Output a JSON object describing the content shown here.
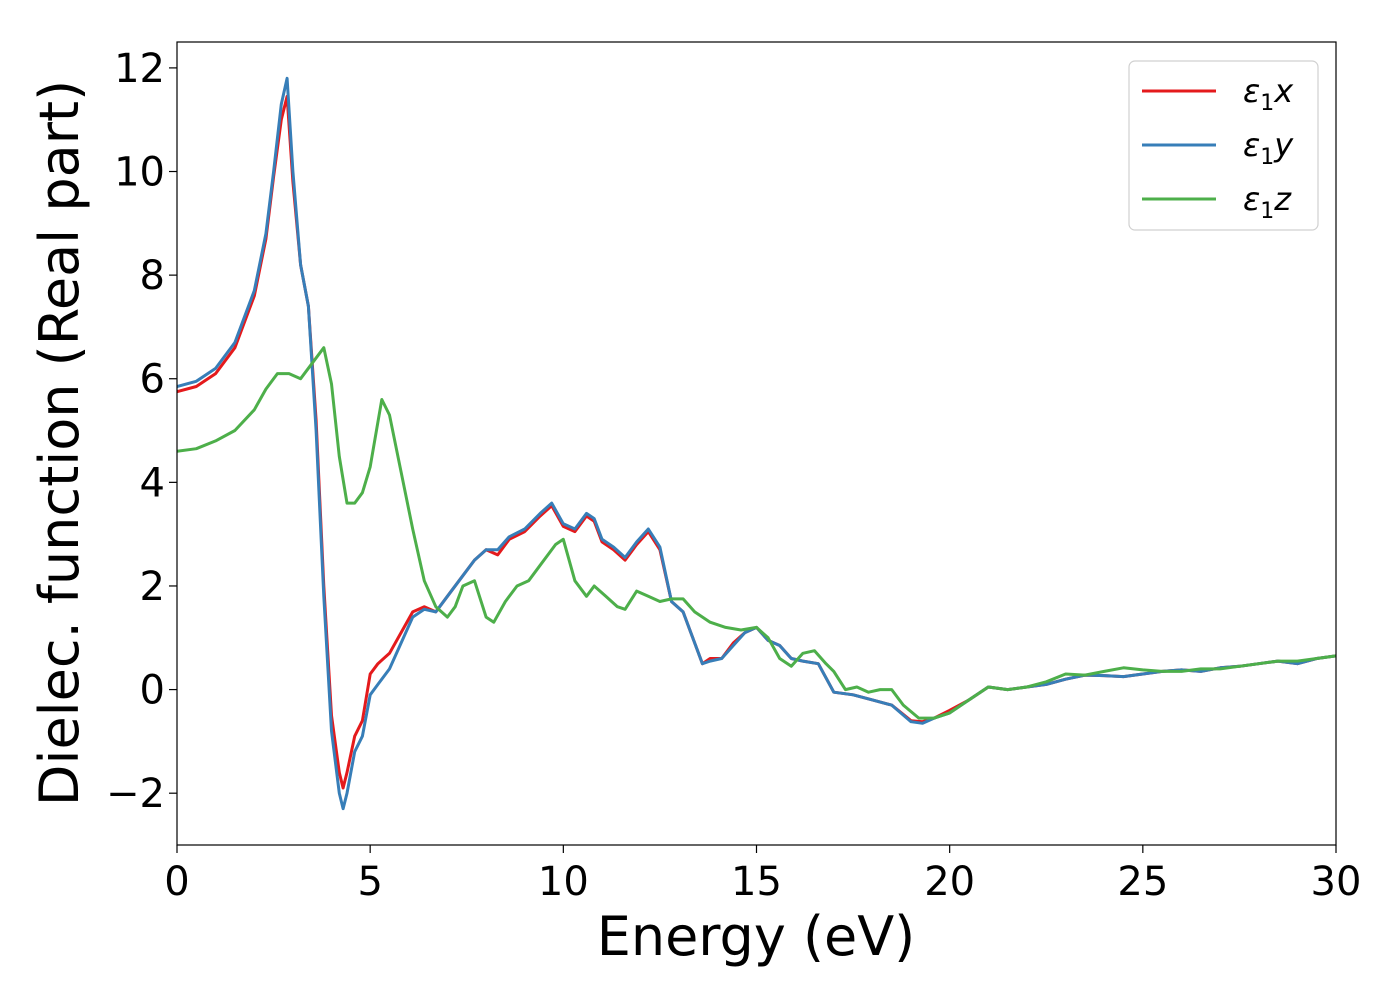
{
  "chart_data": {
    "type": "line",
    "xlabel": "Energy (eV)",
    "ylabel": "Dielec. function (Real part)",
    "xlim": [
      0,
      30
    ],
    "ylim": [
      -3,
      12.5
    ],
    "xticks": [
      0,
      5,
      10,
      15,
      20,
      25,
      30
    ],
    "yticks": [
      -2,
      0,
      2,
      4,
      6,
      8,
      10,
      12
    ],
    "xtick_labels": [
      "0",
      "5",
      "10",
      "15",
      "20",
      "25",
      "30"
    ],
    "ytick_labels": [
      "−2",
      "0",
      "2",
      "4",
      "6",
      "8",
      "10",
      "12"
    ],
    "grid": false,
    "legend_position": "top-right",
    "series": [
      {
        "name": "ε1x",
        "legend": {
          "base": "ε",
          "sub": "1",
          "var": "x"
        },
        "color": "#e41a1c",
        "x": [
          0,
          0.5,
          1,
          1.5,
          2,
          2.3,
          2.5,
          2.7,
          2.85,
          3.0,
          3.2,
          3.4,
          3.6,
          3.8,
          4.0,
          4.2,
          4.3,
          4.4,
          4.6,
          4.8,
          5.0,
          5.2,
          5.5,
          5.8,
          6.1,
          6.4,
          6.7,
          7.0,
          7.3,
          7.7,
          8.0,
          8.3,
          8.6,
          9.0,
          9.4,
          9.7,
          10.0,
          10.3,
          10.6,
          10.8,
          11.0,
          11.3,
          11.6,
          11.9,
          12.2,
          12.5,
          12.8,
          13.1,
          13.4,
          13.6,
          13.8,
          14.1,
          14.4,
          14.7,
          15.0,
          15.3,
          15.6,
          15.9,
          16.2,
          16.6,
          17.0,
          17.5,
          18.0,
          18.5,
          19.0,
          19.3,
          19.6,
          20.0,
          20.5,
          21.0,
          21.5,
          22.0,
          22.5,
          23.0,
          23.5,
          24.0,
          24.5,
          25.0,
          25.5,
          26.0,
          26.5,
          27.0,
          27.5,
          28.0,
          28.5,
          29.0,
          29.5,
          30.0
        ],
        "y": [
          5.75,
          5.85,
          6.1,
          6.6,
          7.6,
          8.7,
          9.9,
          11.0,
          11.45,
          9.8,
          8.2,
          7.4,
          5.2,
          2.0,
          -0.5,
          -1.6,
          -1.9,
          -1.6,
          -0.9,
          -0.6,
          0.3,
          0.5,
          0.7,
          1.1,
          1.5,
          1.6,
          1.5,
          1.8,
          2.1,
          2.5,
          2.7,
          2.6,
          2.9,
          3.05,
          3.35,
          3.55,
          3.15,
          3.05,
          3.35,
          3.25,
          2.85,
          2.7,
          2.5,
          2.8,
          3.05,
          2.7,
          1.7,
          1.5,
          0.9,
          0.5,
          0.6,
          0.6,
          0.9,
          1.1,
          1.2,
          0.95,
          0.85,
          0.6,
          0.55,
          0.5,
          -0.05,
          -0.1,
          -0.2,
          -0.3,
          -0.6,
          -0.62,
          -0.55,
          -0.4,
          -0.2,
          0.05,
          0.0,
          0.05,
          0.1,
          0.2,
          0.28,
          0.27,
          0.25,
          0.3,
          0.35,
          0.38,
          0.35,
          0.42,
          0.45,
          0.5,
          0.55,
          0.5,
          0.6,
          0.65
        ]
      },
      {
        "name": "ε1y",
        "legend": {
          "base": "ε",
          "sub": "1",
          "var": "y"
        },
        "color": "#377eb8",
        "x": [
          0,
          0.5,
          1,
          1.5,
          2,
          2.3,
          2.5,
          2.7,
          2.85,
          3.0,
          3.2,
          3.4,
          3.6,
          3.8,
          4.0,
          4.2,
          4.3,
          4.4,
          4.6,
          4.8,
          5.0,
          5.2,
          5.5,
          5.8,
          6.1,
          6.4,
          6.7,
          7.0,
          7.3,
          7.7,
          8.0,
          8.3,
          8.6,
          9.0,
          9.4,
          9.7,
          10.0,
          10.3,
          10.6,
          10.8,
          11.0,
          11.3,
          11.6,
          11.9,
          12.2,
          12.5,
          12.8,
          13.1,
          13.4,
          13.6,
          13.8,
          14.1,
          14.4,
          14.7,
          15.0,
          15.3,
          15.6,
          15.9,
          16.2,
          16.6,
          17.0,
          17.5,
          18.0,
          18.5,
          19.0,
          19.3,
          19.6,
          20.0,
          20.5,
          21.0,
          21.5,
          22.0,
          22.5,
          23.0,
          23.5,
          24.0,
          24.5,
          25.0,
          25.5,
          26.0,
          26.5,
          27.0,
          27.5,
          28.0,
          28.5,
          29.0,
          29.5,
          30.0
        ],
        "y": [
          5.85,
          5.95,
          6.2,
          6.7,
          7.7,
          8.8,
          10.0,
          11.3,
          11.8,
          10.0,
          8.2,
          7.4,
          5.0,
          1.8,
          -0.8,
          -2.0,
          -2.3,
          -2.0,
          -1.2,
          -0.9,
          -0.1,
          0.1,
          0.4,
          0.9,
          1.4,
          1.55,
          1.5,
          1.8,
          2.1,
          2.5,
          2.7,
          2.7,
          2.95,
          3.1,
          3.4,
          3.6,
          3.2,
          3.1,
          3.4,
          3.3,
          2.9,
          2.75,
          2.55,
          2.85,
          3.1,
          2.75,
          1.7,
          1.5,
          0.9,
          0.5,
          0.55,
          0.6,
          0.85,
          1.1,
          1.2,
          0.95,
          0.85,
          0.6,
          0.55,
          0.5,
          -0.05,
          -0.1,
          -0.2,
          -0.3,
          -0.62,
          -0.65,
          -0.55,
          -0.45,
          -0.2,
          0.05,
          0.0,
          0.05,
          0.1,
          0.2,
          0.28,
          0.27,
          0.25,
          0.3,
          0.35,
          0.38,
          0.35,
          0.42,
          0.45,
          0.5,
          0.55,
          0.5,
          0.6,
          0.65
        ]
      },
      {
        "name": "ε1z",
        "legend": {
          "base": "ε",
          "sub": "1",
          "var": "z"
        },
        "color": "#4daf4a",
        "x": [
          0,
          0.5,
          1,
          1.5,
          2,
          2.3,
          2.6,
          2.9,
          3.2,
          3.5,
          3.8,
          4.0,
          4.2,
          4.4,
          4.6,
          4.8,
          5.0,
          5.3,
          5.5,
          5.8,
          6.1,
          6.4,
          6.7,
          7.0,
          7.2,
          7.4,
          7.7,
          8.0,
          8.2,
          8.5,
          8.8,
          9.1,
          9.4,
          9.8,
          10.0,
          10.3,
          10.6,
          10.8,
          11.1,
          11.4,
          11.6,
          11.9,
          12.2,
          12.5,
          12.8,
          13.1,
          13.4,
          13.8,
          14.2,
          14.6,
          15.0,
          15.3,
          15.6,
          15.9,
          16.2,
          16.5,
          16.8,
          17.0,
          17.3,
          17.6,
          17.9,
          18.2,
          18.5,
          18.8,
          19.2,
          19.6,
          20.0,
          20.5,
          21.0,
          21.5,
          22.0,
          22.5,
          23.0,
          23.5,
          24.0,
          24.5,
          25.0,
          25.5,
          26.0,
          26.5,
          27.0,
          27.5,
          28.0,
          28.5,
          29.0,
          29.5,
          30.0
        ],
        "y": [
          4.6,
          4.65,
          4.8,
          5.0,
          5.4,
          5.8,
          6.1,
          6.1,
          6.0,
          6.3,
          6.6,
          5.9,
          4.5,
          3.6,
          3.6,
          3.8,
          4.3,
          5.6,
          5.3,
          4.2,
          3.1,
          2.1,
          1.6,
          1.4,
          1.6,
          2.0,
          2.1,
          1.4,
          1.3,
          1.7,
          2.0,
          2.1,
          2.4,
          2.8,
          2.9,
          2.1,
          1.8,
          2.0,
          1.8,
          1.6,
          1.55,
          1.9,
          1.8,
          1.7,
          1.75,
          1.75,
          1.5,
          1.3,
          1.2,
          1.15,
          1.2,
          1.0,
          0.6,
          0.45,
          0.7,
          0.75,
          0.5,
          0.35,
          0.0,
          0.05,
          -0.05,
          0.0,
          0.0,
          -0.3,
          -0.55,
          -0.55,
          -0.45,
          -0.2,
          0.05,
          0.0,
          0.05,
          0.15,
          0.3,
          0.28,
          0.35,
          0.42,
          0.38,
          0.35,
          0.35,
          0.4,
          0.4,
          0.45,
          0.5,
          0.55,
          0.55,
          0.6,
          0.65
        ]
      }
    ]
  }
}
